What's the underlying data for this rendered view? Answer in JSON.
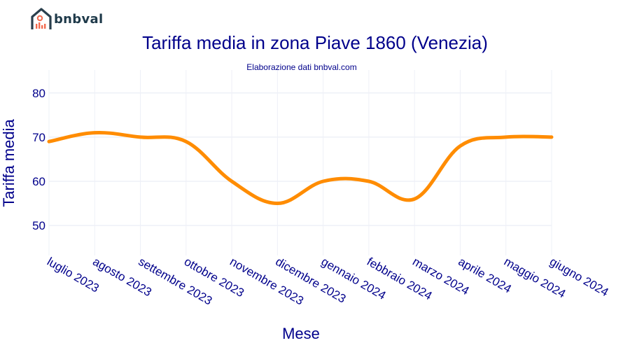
{
  "logo": {
    "text": "bnbval",
    "icon": "house-chart-logo-icon"
  },
  "colors": {
    "line": "#ff8c00",
    "text": "#00008b",
    "grid": "#eef0f7",
    "logo": "#2a3f4d",
    "logo_accent": "#f26b4f"
  },
  "chart_data": {
    "type": "line",
    "title": "Tariffa media in zona Piave 1860 (Venezia)",
    "subtitle": "Elaborazione dati bnbval.com",
    "xlabel": "Mese",
    "ylabel": "Tariffa media",
    "categories": [
      "luglio 2023",
      "agosto 2023",
      "settembre 2023",
      "ottobre 2023",
      "novembre 2023",
      "dicembre 2023",
      "gennaio 2024",
      "febbraio 2024",
      "marzo 2024",
      "aprile 2024",
      "maggio 2024",
      "giugno 2024"
    ],
    "series": [
      {
        "values": [
          69,
          71,
          70,
          69,
          60,
          55,
          60,
          60,
          56,
          68,
          70,
          70
        ]
      }
    ],
    "ylim": [
      43.2,
      85.2
    ],
    "yticks": [
      50,
      60,
      70,
      80
    ],
    "grid": true,
    "smoothing": "spline"
  }
}
